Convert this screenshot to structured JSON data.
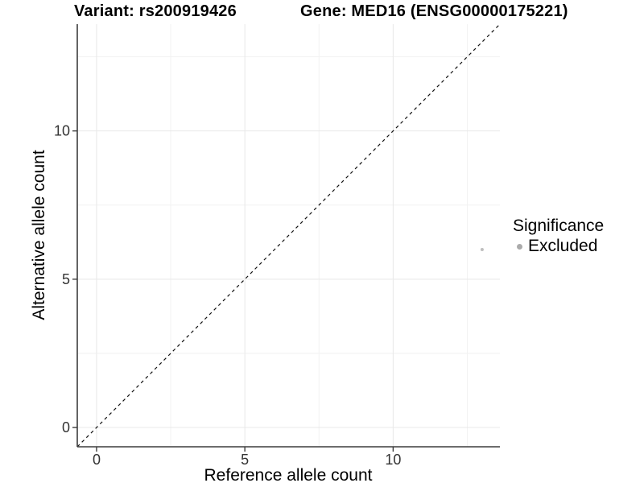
{
  "chart_data": {
    "type": "scatter",
    "title_left": "Variant: rs200919426",
    "title_right": "Gene: MED16 (ENSG00000175221)",
    "xlabel": "Reference allele count",
    "ylabel": "Alternative allele count",
    "xlim": [
      -0.65,
      13.6
    ],
    "ylim": [
      -0.65,
      13.6
    ],
    "x_ticks": [
      0,
      5,
      10
    ],
    "y_ticks": [
      0,
      5,
      10
    ],
    "x_minor_ticks": [
      2.5,
      7.5,
      12.5
    ],
    "y_minor_ticks": [
      2.5,
      7.5,
      12.5
    ],
    "grid": true,
    "identity_line": {
      "slope": 1,
      "intercept": 0,
      "style": "dashed"
    },
    "points": [
      {
        "x": 13,
        "y": 6,
        "group": "Excluded"
      }
    ],
    "legend": {
      "title": "Significance",
      "position": "right",
      "entries": [
        {
          "label": "Excluded",
          "marker": "circle"
        }
      ]
    }
  },
  "colors": {
    "background": "#ffffff",
    "point": "#bfbfbf",
    "legend_dot": "#ababab",
    "grid_major": "#e8e8e8",
    "grid_minor": "#f2f2f2",
    "axis_line": "#3d3d3d",
    "dashed_line": "#111111",
    "title_text": "#000000",
    "tick_text": "#333333"
  }
}
